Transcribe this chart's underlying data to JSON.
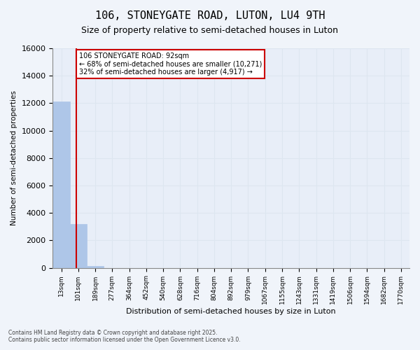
{
  "title": "106, STONEYGATE ROAD, LUTON, LU4 9TH",
  "subtitle": "Size of property relative to semi-detached houses in Luton",
  "xlabel": "Distribution of semi-detached houses by size in Luton",
  "ylabel": "Number of semi-detached properties",
  "footer_line1": "Contains HM Land Registry data © Crown copyright and database right 2025.",
  "footer_line2": "Contains public sector information licensed under the Open Government Licence v3.0.",
  "bar_color": "#aec6e8",
  "bar_edge_color": "#aec6e8",
  "grid_color": "#dde6f0",
  "annotation_box_color": "#cc0000",
  "annotation_text_line1": "106 STONEYGATE ROAD: 92sqm",
  "annotation_text_line2": "← 68% of semi-detached houses are smaller (10,271)",
  "annotation_text_line3": "32% of semi-detached houses are larger (4,917) →",
  "property_size": 92,
  "property_line_color": "#cc0000",
  "bin_labels": [
    "13sqm",
    "101sqm",
    "189sqm",
    "277sqm",
    "364sqm",
    "452sqm",
    "540sqm",
    "628sqm",
    "716sqm",
    "804sqm",
    "892sqm",
    "979sqm",
    "1067sqm",
    "1155sqm",
    "1243sqm",
    "1331sqm",
    "1419sqm",
    "1506sqm",
    "1594sqm",
    "1682sqm",
    "1770sqm"
  ],
  "bins": [
    13,
    101,
    189,
    277,
    364,
    452,
    540,
    628,
    716,
    804,
    892,
    979,
    1067,
    1155,
    1243,
    1331,
    1419,
    1506,
    1594,
    1682,
    1770
  ],
  "counts": [
    12100,
    3200,
    150,
    0,
    0,
    0,
    0,
    0,
    0,
    0,
    0,
    0,
    0,
    0,
    0,
    0,
    0,
    0,
    0,
    0,
    0
  ],
  "ylim": [
    0,
    16000
  ],
  "yticks": [
    0,
    2000,
    4000,
    6000,
    8000,
    10000,
    12000,
    14000,
    16000
  ],
  "background_color": "#f0f4fa",
  "plot_background": "#e8eef8"
}
